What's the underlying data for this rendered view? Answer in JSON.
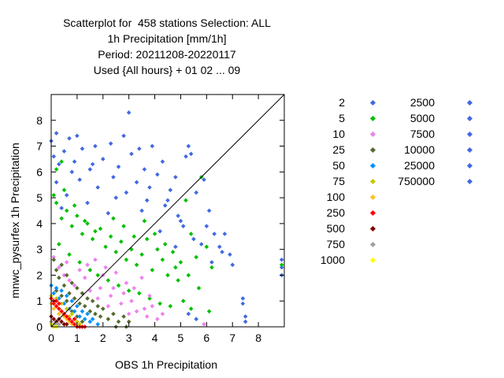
{
  "chart_data": {
    "type": "scatter",
    "title_lines": [
      "Scatterplot for  458 stations Selection: ALL",
      "1h Precipitation [mm/1h]",
      "Period: 20211208-20220117",
      "Used {All hours} + 01 02 ... 09"
    ],
    "xlabel": "OBS 1h Precipitation",
    "ylabel": "mnwc_pysurfex 1h Precipitation",
    "xlim": [
      0,
      9
    ],
    "ylim": [
      0,
      9
    ],
    "xticks": [
      0,
      1,
      2,
      3,
      4,
      5,
      6,
      7,
      8
    ],
    "yticks": [
      0,
      1,
      2,
      3,
      4,
      5,
      6,
      7,
      8
    ],
    "diagonal": true,
    "legend_position": "right",
    "legend": [
      {
        "label": "2",
        "color": "#4169e1"
      },
      {
        "label": "5",
        "color": "#00c000"
      },
      {
        "label": "10",
        "color": "#ee82ee"
      },
      {
        "label": "25",
        "color": "#556b2f"
      },
      {
        "label": "50",
        "color": "#0090ff"
      },
      {
        "label": "75",
        "color": "#c8c800"
      },
      {
        "label": "100",
        "color": "#ffc020"
      },
      {
        "label": "250",
        "color": "#ff0000"
      },
      {
        "label": "500",
        "color": "#800000"
      },
      {
        "label": "750",
        "color": "#a0a0a0"
      },
      {
        "label": "1000",
        "color": "#ffff00"
      },
      {
        "label": "2500",
        "color": "#4169e1"
      },
      {
        "label": "5000",
        "color": "#4169e1"
      },
      {
        "label": "7500",
        "color": "#4169e1"
      },
      {
        "label": "10000",
        "color": "#4169e1"
      },
      {
        "label": "25000",
        "color": "#4169e1"
      },
      {
        "label": "750000",
        "color": "#4169e1"
      }
    ],
    "series": [
      {
        "color": "#4169e1",
        "points": [
          [
            0.0,
            7.2
          ],
          [
            0.1,
            6.6
          ],
          [
            0.2,
            7.5
          ],
          [
            0.3,
            6.3
          ],
          [
            0.5,
            6.8
          ],
          [
            0.7,
            7.3
          ],
          [
            0.9,
            6.4
          ],
          [
            1.0,
            7.4
          ],
          [
            1.2,
            6.9
          ],
          [
            1.5,
            6.1
          ],
          [
            1.7,
            7.0
          ],
          [
            2.0,
            6.5
          ],
          [
            2.3,
            7.1
          ],
          [
            2.6,
            6.2
          ],
          [
            2.8,
            7.4
          ],
          [
            3.0,
            8.3
          ],
          [
            3.1,
            6.7
          ],
          [
            3.4,
            6.9
          ],
          [
            3.6,
            6.1
          ],
          [
            3.9,
            7.0
          ],
          [
            4.1,
            5.9
          ],
          [
            4.3,
            6.4
          ],
          [
            4.6,
            5.3
          ],
          [
            4.8,
            5.8
          ],
          [
            5.2,
            6.6
          ],
          [
            5.3,
            7.0
          ],
          [
            5.4,
            6.7
          ],
          [
            5.6,
            5.2
          ],
          [
            5.9,
            5.7
          ],
          [
            6.1,
            4.5
          ],
          [
            6.3,
            3.6
          ],
          [
            6.5,
            3.1
          ],
          [
            6.7,
            3.6
          ],
          [
            6.9,
            2.8
          ],
          [
            7.0,
            2.4
          ],
          [
            7.4,
            1.1
          ],
          [
            7.4,
            0.9
          ],
          [
            7.5,
            0.4
          ],
          [
            7.5,
            0.2
          ],
          [
            8.9,
            2.6
          ],
          [
            8.9,
            2.3
          ],
          [
            8.9,
            2.0
          ],
          [
            0.2,
            5.6
          ],
          [
            0.6,
            5.1
          ],
          [
            1.1,
            5.7
          ],
          [
            1.8,
            5.4
          ],
          [
            2.4,
            5.8
          ],
          [
            2.9,
            5.2
          ],
          [
            3.3,
            5.6
          ],
          [
            3.7,
            4.9
          ],
          [
            4.4,
            4.7
          ],
          [
            4.9,
            4.3
          ],
          [
            5.1,
            3.9
          ],
          [
            5.5,
            3.4
          ],
          [
            5.8,
            3.2
          ],
          [
            0.4,
            4.6
          ],
          [
            1.4,
            4.8
          ],
          [
            2.2,
            4.4
          ],
          [
            3.5,
            4.5
          ],
          [
            4.2,
            3.7
          ],
          [
            4.8,
            3.1
          ],
          [
            5.3,
            0.5
          ],
          [
            5.6,
            0.3
          ],
          [
            6.2,
            2.5
          ],
          [
            0.8,
            6.0
          ],
          [
            1.6,
            6.3
          ],
          [
            2.5,
            5.0
          ],
          [
            3.8,
            5.4
          ],
          [
            4.5,
            4.9
          ],
          [
            5.0,
            4.1
          ],
          [
            6.0,
            3.9
          ],
          [
            6.6,
            2.9
          ]
        ]
      },
      {
        "color": "#00c000",
        "points": [
          [
            0.1,
            5.1
          ],
          [
            0.2,
            4.8
          ],
          [
            0.4,
            4.2
          ],
          [
            0.6,
            4.5
          ],
          [
            0.8,
            3.9
          ],
          [
            1.0,
            4.3
          ],
          [
            1.2,
            3.6
          ],
          [
            1.4,
            4.0
          ],
          [
            1.6,
            3.4
          ],
          [
            1.9,
            3.8
          ],
          [
            2.1,
            3.1
          ],
          [
            2.3,
            3.5
          ],
          [
            2.5,
            2.9
          ],
          [
            2.7,
            3.3
          ],
          [
            2.9,
            2.6
          ],
          [
            3.1,
            3.0
          ],
          [
            3.3,
            2.4
          ],
          [
            3.5,
            2.8
          ],
          [
            3.7,
            3.4
          ],
          [
            3.9,
            2.2
          ],
          [
            4.1,
            3.0
          ],
          [
            4.3,
            2.6
          ],
          [
            4.5,
            2.0
          ],
          [
            4.7,
            2.9
          ],
          [
            4.9,
            1.8
          ],
          [
            5.0,
            2.5
          ],
          [
            5.2,
            4.9
          ],
          [
            5.4,
            3.6
          ],
          [
            5.6,
            2.7
          ],
          [
            5.8,
            5.8
          ],
          [
            6.0,
            3.1
          ],
          [
            6.2,
            2.3
          ],
          [
            8.9,
            2.4
          ],
          [
            0.3,
            3.2
          ],
          [
            0.7,
            2.8
          ],
          [
            1.1,
            2.5
          ],
          [
            1.5,
            2.2
          ],
          [
            1.8,
            2.0
          ],
          [
            2.2,
            1.8
          ],
          [
            2.6,
            1.6
          ],
          [
            3.0,
            1.4
          ],
          [
            3.4,
            1.3
          ],
          [
            3.8,
            1.1
          ],
          [
            4.2,
            0.9
          ],
          [
            4.6,
            0.8
          ],
          [
            5.1,
            1.0
          ],
          [
            5.4,
            0.7
          ],
          [
            0.5,
            5.3
          ],
          [
            0.9,
            4.7
          ],
          [
            1.3,
            4.1
          ],
          [
            1.7,
            3.7
          ],
          [
            2.4,
            4.2
          ],
          [
            2.8,
            3.9
          ],
          [
            3.2,
            3.5
          ],
          [
            3.6,
            4.1
          ],
          [
            4.0,
            3.6
          ],
          [
            4.4,
            3.2
          ],
          [
            4.8,
            2.3
          ],
          [
            5.3,
            2.0
          ],
          [
            5.7,
            1.5
          ],
          [
            6.1,
            0.6
          ],
          [
            0.2,
            6.1
          ],
          [
            0.4,
            6.4
          ]
        ]
      },
      {
        "color": "#ee82ee",
        "points": [
          [
            0.1,
            2.7
          ],
          [
            0.3,
            2.3
          ],
          [
            0.5,
            2.0
          ],
          [
            0.7,
            1.8
          ],
          [
            0.9,
            1.6
          ],
          [
            1.1,
            2.2
          ],
          [
            1.3,
            1.9
          ],
          [
            1.5,
            1.4
          ],
          [
            1.7,
            2.6
          ],
          [
            1.9,
            1.5
          ],
          [
            2.1,
            2.3
          ],
          [
            2.3,
            1.2
          ],
          [
            2.5,
            2.1
          ],
          [
            2.7,
            0.9
          ],
          [
            2.9,
            1.7
          ],
          [
            3.1,
            1.0
          ],
          [
            3.3,
            0.6
          ],
          [
            3.5,
            1.9
          ],
          [
            3.7,
            0.4
          ],
          [
            3.9,
            0.8
          ],
          [
            4.1,
            0.3
          ],
          [
            4.3,
            0.5
          ],
          [
            5.9,
            0.1
          ],
          [
            0.6,
            2.5
          ],
          [
            1.2,
            1.3
          ],
          [
            1.8,
            1.1
          ],
          [
            2.4,
            1.5
          ],
          [
            3.0,
            0.5
          ],
          [
            3.6,
            0.7
          ],
          [
            2.2,
            0.8
          ],
          [
            2.8,
            1.3
          ],
          [
            1.4,
            2.4
          ],
          [
            2.0,
            2.0
          ],
          [
            3.2,
            1.5
          ],
          [
            3.8,
            1.2
          ]
        ]
      },
      {
        "color": "#556b2f",
        "points": [
          [
            0.1,
            2.6
          ],
          [
            0.2,
            2.2
          ],
          [
            0.3,
            1.9
          ],
          [
            0.4,
            2.4
          ],
          [
            0.5,
            1.6
          ],
          [
            0.6,
            2.0
          ],
          [
            0.7,
            1.3
          ],
          [
            0.8,
            1.7
          ],
          [
            0.9,
            1.1
          ],
          [
            1.0,
            1.5
          ],
          [
            1.1,
            0.9
          ],
          [
            1.2,
            1.3
          ],
          [
            1.3,
            0.8
          ],
          [
            1.4,
            1.1
          ],
          [
            1.5,
            0.6
          ],
          [
            1.6,
            1.0
          ],
          [
            1.7,
            0.5
          ],
          [
            1.8,
            0.8
          ],
          [
            1.9,
            0.4
          ],
          [
            2.0,
            0.7
          ],
          [
            2.2,
            0.3
          ],
          [
            2.4,
            0.5
          ],
          [
            2.6,
            0.2
          ],
          [
            2.8,
            0.4
          ],
          [
            3.0,
            0.2
          ],
          [
            2.5,
            0.0
          ],
          [
            2.9,
            0.0
          ],
          [
            0.2,
            1.4
          ],
          [
            0.4,
            1.2
          ],
          [
            0.6,
            1.0
          ],
          [
            0.8,
            0.6
          ],
          [
            1.0,
            0.4
          ],
          [
            1.2,
            0.2
          ]
        ]
      },
      {
        "color": "#0090ff",
        "points": [
          [
            0.0,
            1.6
          ],
          [
            0.1,
            1.3
          ],
          [
            0.2,
            1.5
          ],
          [
            0.3,
            1.1
          ],
          [
            0.4,
            1.4
          ],
          [
            0.5,
            0.9
          ],
          [
            0.6,
            1.2
          ],
          [
            0.7,
            0.7
          ],
          [
            0.8,
            1.0
          ],
          [
            0.9,
            0.6
          ],
          [
            1.0,
            0.8
          ],
          [
            1.1,
            0.4
          ],
          [
            1.2,
            0.6
          ],
          [
            1.3,
            0.3
          ],
          [
            1.4,
            0.5
          ],
          [
            1.5,
            0.2
          ],
          [
            1.6,
            0.3
          ],
          [
            1.8,
            0.1
          ]
        ]
      },
      {
        "color": "#c8c800",
        "points": [
          [
            0.0,
            1.2
          ],
          [
            0.1,
            0.9
          ],
          [
            0.2,
            1.1
          ],
          [
            0.3,
            0.7
          ],
          [
            0.4,
            0.9
          ],
          [
            0.5,
            0.5
          ],
          [
            0.6,
            0.7
          ],
          [
            0.7,
            0.4
          ],
          [
            0.8,
            0.5
          ],
          [
            0.9,
            0.3
          ],
          [
            1.0,
            0.2
          ],
          [
            1.1,
            0.1
          ]
        ]
      },
      {
        "color": "#ffc020",
        "points": [
          [
            0.0,
            0.9
          ],
          [
            0.1,
            0.7
          ],
          [
            0.2,
            0.8
          ],
          [
            0.3,
            0.5
          ],
          [
            0.4,
            0.6
          ],
          [
            0.5,
            0.4
          ],
          [
            0.6,
            0.3
          ],
          [
            0.7,
            0.2
          ],
          [
            0.8,
            0.1
          ]
        ]
      },
      {
        "color": "#ff0000",
        "points": [
          [
            0.0,
            1.1
          ],
          [
            0.1,
            0.9
          ],
          [
            0.2,
            0.8
          ],
          [
            0.3,
            0.7
          ],
          [
            0.4,
            0.6
          ],
          [
            0.5,
            0.5
          ],
          [
            0.6,
            0.4
          ],
          [
            0.7,
            0.3
          ],
          [
            0.8,
            0.2
          ],
          [
            0.9,
            0.1
          ],
          [
            1.0,
            0.0
          ],
          [
            1.1,
            0.0
          ],
          [
            1.2,
            0.0
          ],
          [
            1.3,
            0.0
          ],
          [
            0.9,
            0.3
          ],
          [
            0.2,
            1.0
          ],
          [
            0.3,
            0.9
          ],
          [
            0.1,
            1.0
          ]
        ]
      },
      {
        "color": "#800000",
        "points": [
          [
            0.0,
            0.4
          ],
          [
            0.1,
            0.3
          ],
          [
            0.2,
            0.2
          ],
          [
            0.3,
            0.3
          ],
          [
            0.4,
            0.2
          ],
          [
            0.5,
            0.1
          ],
          [
            0.6,
            0.1
          ]
        ]
      },
      {
        "color": "#a0a0a0",
        "points": [
          [
            0.0,
            0.2
          ],
          [
            0.1,
            0.1
          ],
          [
            0.2,
            0.1
          ],
          [
            0.3,
            0.1
          ]
        ]
      },
      {
        "color": "#ffff00",
        "points": [
          [
            0.0,
            0.1
          ],
          [
            0.1,
            0.0
          ],
          [
            0.2,
            0.0
          ]
        ]
      }
    ]
  }
}
